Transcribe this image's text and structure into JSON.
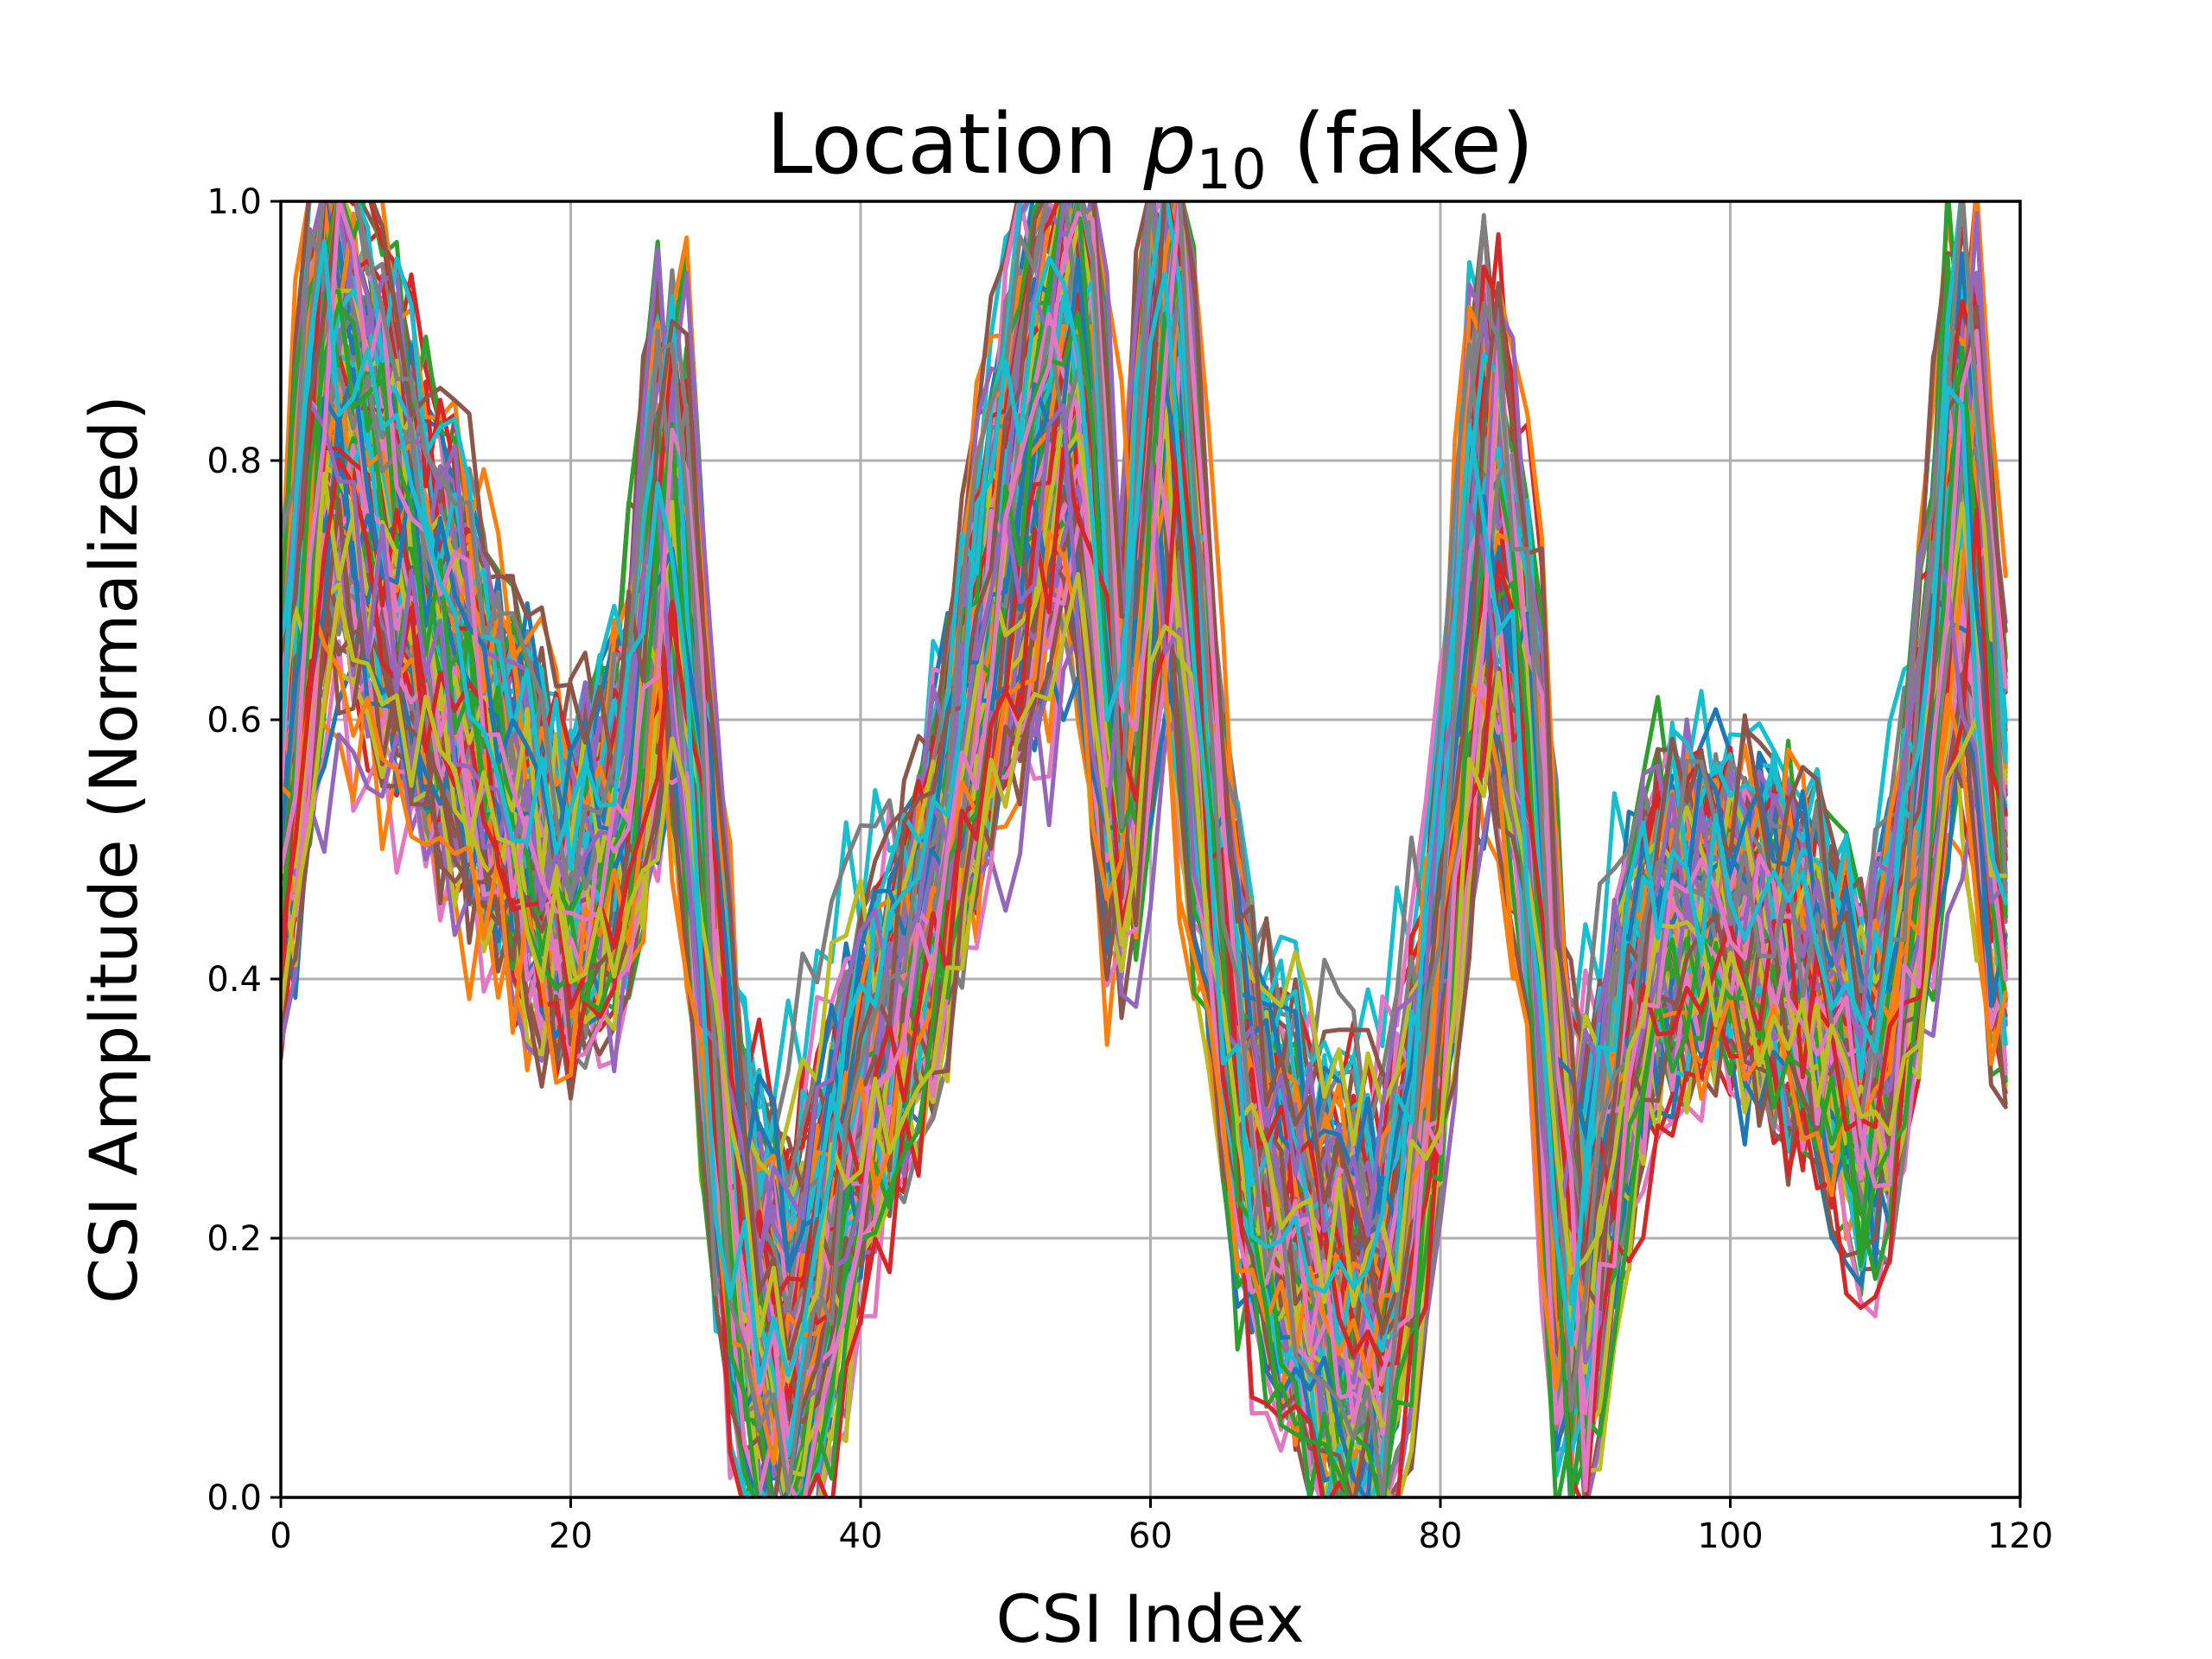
{
  "chart_data": {
    "type": "line",
    "title": "Location p10 (fake)",
    "title_main": "Location ",
    "title_var": "p",
    "title_sub": "10",
    "title_tail": " (fake)",
    "xlabel": "CSI Index",
    "ylabel": "CSI Amplitude (Normalized)",
    "xlim": [
      0,
      120
    ],
    "ylim": [
      0.0,
      1.0
    ],
    "x_ticks": [
      0,
      20,
      40,
      60,
      80,
      100,
      120
    ],
    "y_ticks": [
      0.0,
      0.2,
      0.4,
      0.6,
      0.8,
      1.0
    ],
    "x_tick_labels": [
      "0",
      "20",
      "40",
      "60",
      "80",
      "100",
      "120"
    ],
    "y_tick_labels": [
      "0.0",
      "0.2",
      "0.4",
      "0.6",
      "0.8",
      "1.0"
    ],
    "grid": true,
    "legend": "none",
    "x_count": 120,
    "series_count": 140,
    "profile_x": [
      0,
      3,
      10,
      16,
      20,
      24,
      27,
      29,
      31,
      35,
      40,
      45,
      50,
      55,
      58,
      61,
      64,
      67,
      72,
      76,
      80,
      83,
      86,
      89,
      91,
      95,
      100,
      105,
      110,
      113,
      116,
      119
    ],
    "profile_y": [
      0.5,
      0.9,
      0.7,
      0.55,
      0.45,
      0.55,
      0.8,
      0.5,
      0.2,
      0.05,
      0.3,
      0.45,
      0.75,
      0.95,
      0.5,
      0.95,
      0.5,
      0.25,
      0.15,
      0.1,
      0.4,
      0.8,
      0.6,
      0.1,
      0.25,
      0.45,
      0.45,
      0.4,
      0.3,
      0.5,
      0.85,
      0.45
    ],
    "colors": [
      "#1f77b4",
      "#ff7f0e",
      "#2ca02c",
      "#d62728",
      "#9467bd",
      "#8c564b",
      "#e377c2",
      "#7f7f7f",
      "#bcbd22",
      "#17becf"
    ]
  }
}
